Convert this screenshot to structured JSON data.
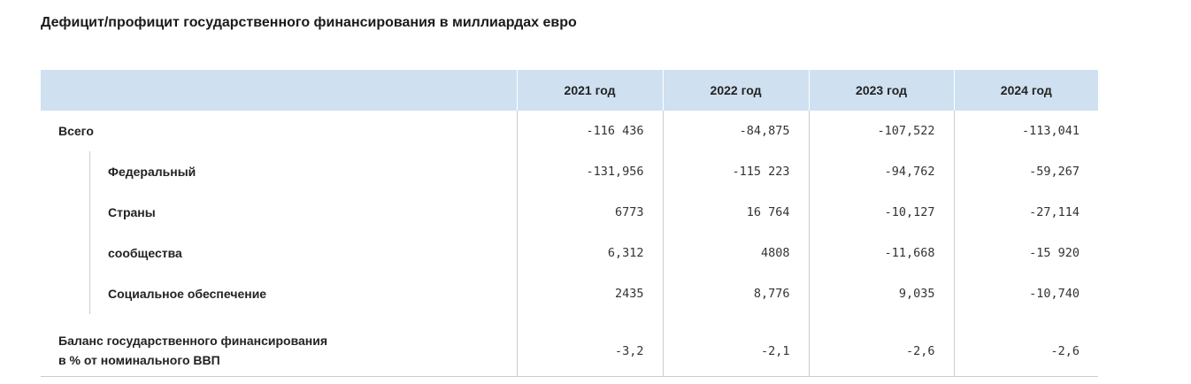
{
  "title": "Дефицит/профицит государственного финансирования в миллиардах евро",
  "table": {
    "columns": [
      "2021 год",
      "2022 год",
      "2023 год",
      "2024 год"
    ],
    "rows": [
      {
        "label": "Всего",
        "values": [
          "-116 436",
          "-84,875",
          "-107,522",
          "-113,041"
        ]
      },
      {
        "label": "Федеральный",
        "values": [
          "-131,956",
          "-115 223",
          "-94,762",
          "-59,267"
        ]
      },
      {
        "label": "Страны",
        "values": [
          "6773",
          "16 764",
          "-10,127",
          "-27,114"
        ]
      },
      {
        "label": "сообщества",
        "values": [
          "6,312",
          "4808",
          "-11,668",
          "-15 920"
        ]
      },
      {
        "label": "Социальное обеспечение",
        "values": [
          "2435",
          "8,776",
          "9,035",
          "-10,740"
        ]
      }
    ],
    "balance": {
      "label_line1": "Баланс государственного финансирования",
      "label_line2": "в % от номинального ВВП",
      "values": [
        "-3,2",
        "-2,1",
        "-2,6",
        "-2,6"
      ]
    }
  }
}
